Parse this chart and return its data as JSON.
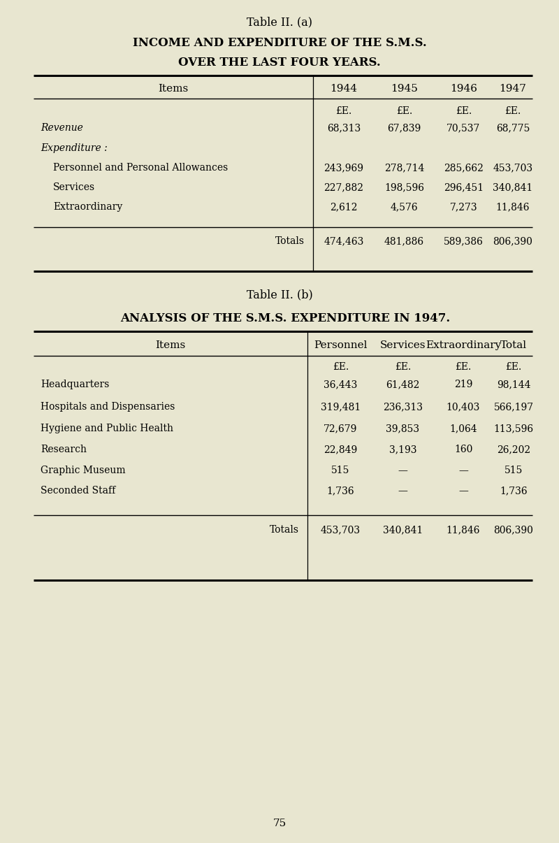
{
  "bg_color": "#e8e6d0",
  "title_a": "Table II. (a)",
  "subtitle_a1": "INCOME AND EXPENDITURE OF THE S.M.S.",
  "subtitle_a2": "OVER THE LAST FOUR YEARS.",
  "title_b": "Table II. (b)",
  "subtitle_b": "ANALYSIS OF THE S.M.S. EXPENDITURE IN 1947.",
  "table_a_headers": [
    "Items",
    "1944",
    "1945",
    "1946",
    "1947"
  ],
  "table_a_unit_row": [
    "",
    "£E.",
    "£E.",
    "£E.",
    "£E."
  ],
  "table_a_rows": [
    [
      "Revenue",
      "68,313",
      "67,839",
      "70,537",
      "68,775",
      "italic"
    ],
    [
      "Expenditure :",
      "",
      "",
      "",
      "",
      "italic"
    ],
    [
      "Personnel and Personal Allowances",
      "243,969",
      "278,714",
      "285,662",
      "453,703",
      "normal"
    ],
    [
      "Services",
      "227,882",
      "198,596",
      "296,451",
      "340,841",
      "normal"
    ],
    [
      "Extraordinary",
      "2,612",
      "4,576",
      "7,273",
      "11,846",
      "normal"
    ],
    [
      "Totals",
      "474,463",
      "481,886",
      "589,386",
      "806,390",
      "normal"
    ]
  ],
  "table_b_headers": [
    "Items",
    "Personnel",
    "Services",
    "Extraordinary",
    "Total"
  ],
  "table_b_unit_row": [
    "",
    "£E.",
    "£E.",
    "£E.",
    "£E."
  ],
  "table_b_rows": [
    [
      "Headquarters",
      "36,443",
      "61,482",
      "219",
      "98,144"
    ],
    [
      "Hospitals and Dispensaries",
      "319,481",
      "236,313",
      "10,403",
      "566,197"
    ],
    [
      "Hygiene and Public Health",
      "72,679",
      "39,853",
      "1,064",
      "113,596"
    ],
    [
      "Research",
      "22,849",
      "3,193",
      "160",
      "26,202"
    ],
    [
      "Graphic Museum",
      "515",
      "—",
      "—",
      "515"
    ],
    [
      "Seconded Staff",
      "1,736",
      "—",
      "—",
      "1,736"
    ],
    [
      "Totals",
      "453,703",
      "340,841",
      "11,846",
      "806,390"
    ]
  ],
  "page_number": "75",
  "fig_width": 8.0,
  "fig_height": 12.06,
  "dpi": 100
}
